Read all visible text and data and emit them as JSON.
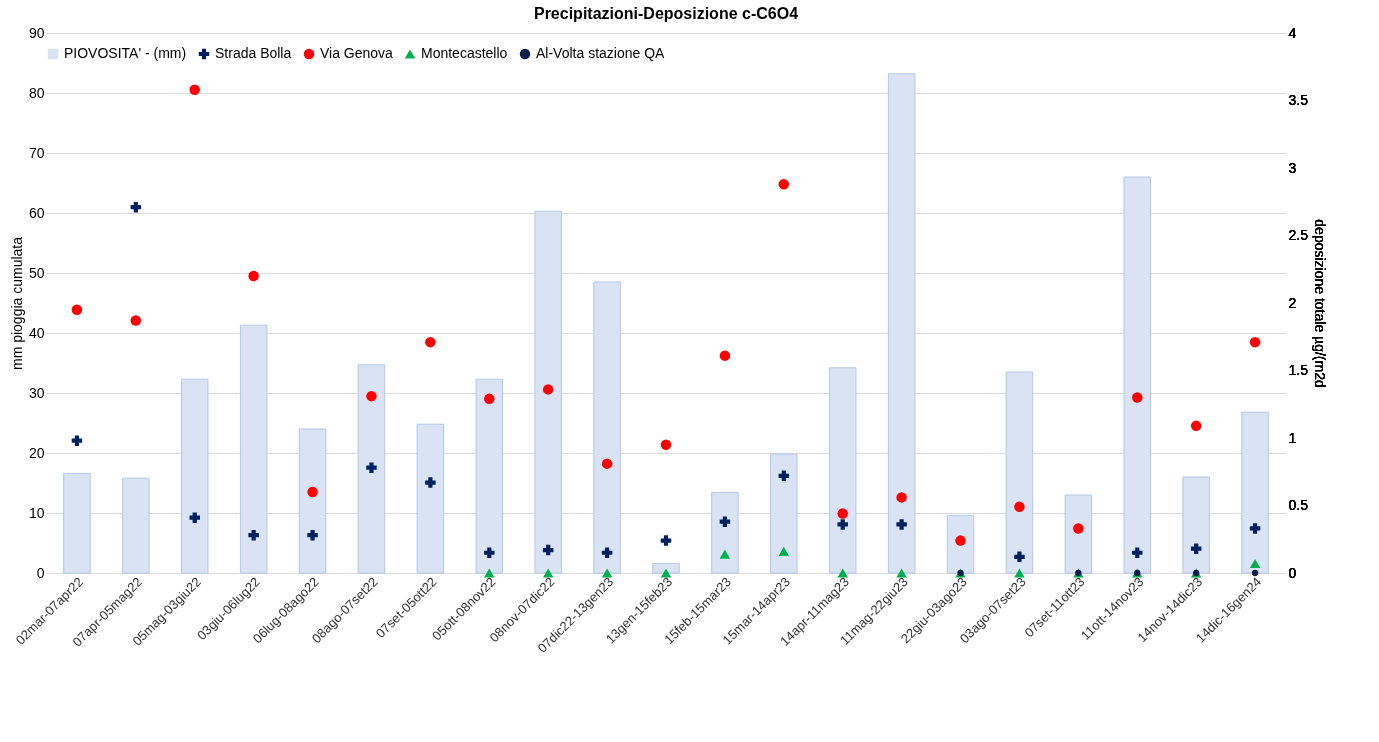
{
  "chart_data": {
    "type": "bar",
    "title": "Precipitazioni-Deposizione c-C6O4",
    "ylabel": "mm pioggia cumulata",
    "y2label": "deposizione totale µg/(m2d",
    "categories": [
      "02mar-07apr22",
      "07apr-05mag22",
      "05mag-03giu22",
      "03giu-06lug22",
      "06lug-08ago22",
      "08ago-07set22",
      "07set-05ott22",
      "05ott-08nov22",
      "08nov-07dic22",
      "07dic22-13gen23",
      "13gen-15feb23",
      "15feb-15mar23",
      "15mar-14apr23",
      "14apr-11mag23",
      "11mag-22giu23",
      "22giu-03ago23",
      "03ago-07set23",
      "07set-11ott23",
      "11ott-14nov23",
      "14nov-14dic23",
      "14dic-16gen24"
    ],
    "series": [
      {
        "name": "PIOVOSITA' - (mm)",
        "color": "#dae3f3",
        "values": [
          16.6,
          15.8,
          32.3,
          41.3,
          24,
          34.7,
          24.8,
          32.3,
          60.3,
          48.5,
          1.6,
          13.4,
          19.8,
          34.2,
          83.2,
          9.6,
          33.5,
          13,
          66,
          16,
          26.8
        ]
      },
      {
        "name": "Strada Bolla",
        "type": "scatter",
        "axis": "y2",
        "marker": "cross",
        "color": "#002060",
        "values": [
          0.98,
          2.71,
          0.41,
          0.28,
          0.28,
          0.78,
          0.67,
          0.15,
          0.17,
          0.15,
          0.24,
          0.38,
          0.72,
          0.36,
          0.36,
          null,
          0.12,
          null,
          0.15,
          0.18,
          0.33
        ]
      },
      {
        "name": "Via Genova",
        "type": "scatter",
        "axis": "y2",
        "marker": "circle",
        "color": "#ff0000",
        "values": [
          1.95,
          1.87,
          3.58,
          2.2,
          0.6,
          1.31,
          1.71,
          1.29,
          1.36,
          0.81,
          0.95,
          1.61,
          2.88,
          0.44,
          0.56,
          0.24,
          0.49,
          0.33,
          1.3,
          1.09,
          1.71
        ]
      },
      {
        "name": "Montecastello",
        "type": "scatter",
        "axis": "y2",
        "marker": "triangle",
        "color": "#00b050",
        "values": [
          null,
          null,
          null,
          null,
          null,
          null,
          null,
          0,
          0,
          0,
          0,
          0.14,
          0.16,
          0,
          0,
          0,
          0,
          0,
          0,
          0,
          0.07
        ]
      },
      {
        "name": "Al-Volta stazione QA",
        "type": "scatter",
        "axis": "y2",
        "marker": "circle",
        "color": "#0b1f4a",
        "values": [
          null,
          null,
          null,
          null,
          null,
          null,
          null,
          null,
          null,
          null,
          null,
          null,
          null,
          null,
          null,
          0,
          null,
          0,
          0,
          0,
          0
        ]
      }
    ],
    "ylim": [
      0,
      90
    ],
    "yticks": [
      0,
      10,
      20,
      30,
      40,
      50,
      60,
      70,
      80,
      90
    ],
    "y2lim": [
      0,
      4
    ],
    "y2ticks": [
      0,
      0.5,
      1,
      1.5,
      2,
      2.5,
      3,
      3.5,
      4
    ],
    "grid": "y",
    "legend": "top"
  }
}
